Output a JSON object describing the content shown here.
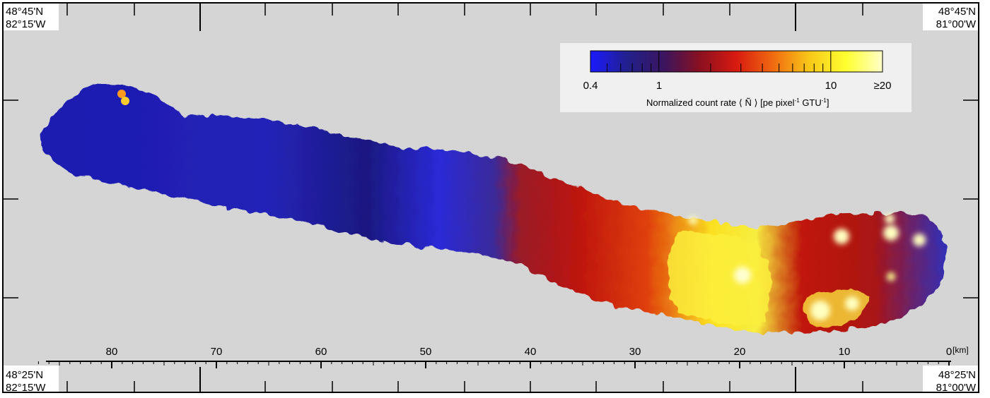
{
  "corners": {
    "top_left": {
      "lat": "48°45'N",
      "lon": "82°15'W"
    },
    "top_right": {
      "lat": "48°45'N",
      "lon": "81°00'W"
    },
    "bottom_left": {
      "lat": "48°25'N",
      "lon": "82°15'W"
    },
    "bottom_right": {
      "lat": "48°25'N",
      "lon": "81°00'W"
    }
  },
  "distance_scale": {
    "unit": "[km]",
    "labels": [
      "80",
      "70",
      "60",
      "50",
      "40",
      "30",
      "20",
      "10",
      "0"
    ]
  },
  "colorbar": {
    "tick_labels": [
      "0.4",
      "1",
      "10",
      "≥20"
    ],
    "title_main": "Normalized count rate ⟨ Ñ ⟩ [pe pixel",
    "title_sup1": "-1",
    "title_mid": " GTU",
    "title_sup2": "-1",
    "title_end": "]",
    "colors": [
      "#1a1aff",
      "#22208c",
      "#3a1560",
      "#8a1020",
      "#d81a10",
      "#f06a10",
      "#f8c818",
      "#ffff30",
      "#ffffc8"
    ]
  },
  "colors": {
    "background": "#d7d7d7",
    "frame": "#333333",
    "low_signal": "#2828c8",
    "mid_signal": "#c8200c",
    "high_signal": "#ffff40"
  }
}
